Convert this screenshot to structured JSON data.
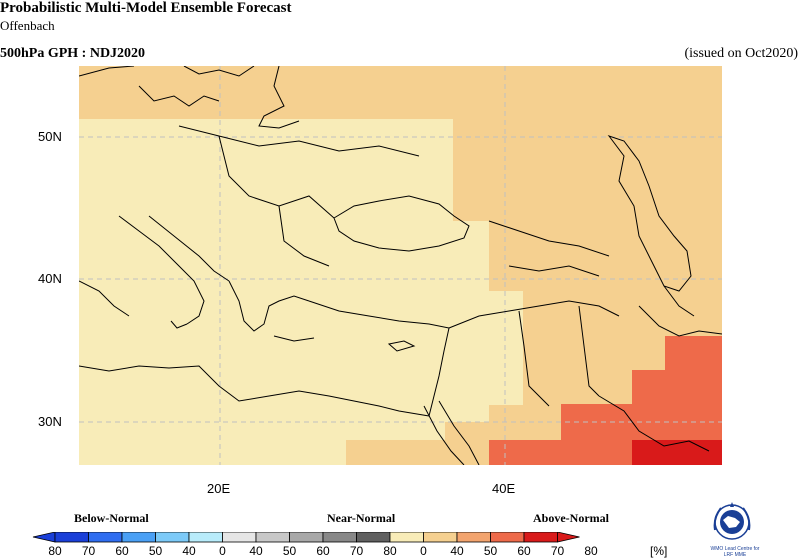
{
  "header": {
    "title": "Probabilistic Multi-Model Ensemble Forecast",
    "subtitle": "Offenbach",
    "parameter": "500hPa GPH : NDJ2020",
    "issued": "(issued on Oct2020)"
  },
  "axes": {
    "lat_labels": [
      "50N",
      "40N",
      "30N"
    ],
    "lon_labels": [
      "20E",
      "40E"
    ]
  },
  "legend": {
    "below_label": "Below-Normal",
    "near_label": "Near-Normal",
    "above_label": "Above-Normal",
    "unit": "[%]",
    "ticks": [
      "80",
      "70",
      "60",
      "50",
      "40",
      "0",
      "40",
      "50",
      "60",
      "70",
      "80",
      "0",
      "40",
      "50",
      "60",
      "70",
      "80"
    ],
    "colors": {
      "below": [
        "#1a3fd8",
        "#2f6df0",
        "#4aa0f5",
        "#7ccaf8",
        "#b8ecfb"
      ],
      "near": [
        "#e6e6e6",
        "#c8c8c8",
        "#a8a8a8",
        "#888888",
        "#606060"
      ],
      "above": [
        "#f8ecb8",
        "#f5d090",
        "#f3a46e",
        "#ee6a4a",
        "#d91a1a"
      ]
    }
  },
  "logo": {
    "line1": "WMO Lead Centre for",
    "line2": "LRF MME"
  }
}
